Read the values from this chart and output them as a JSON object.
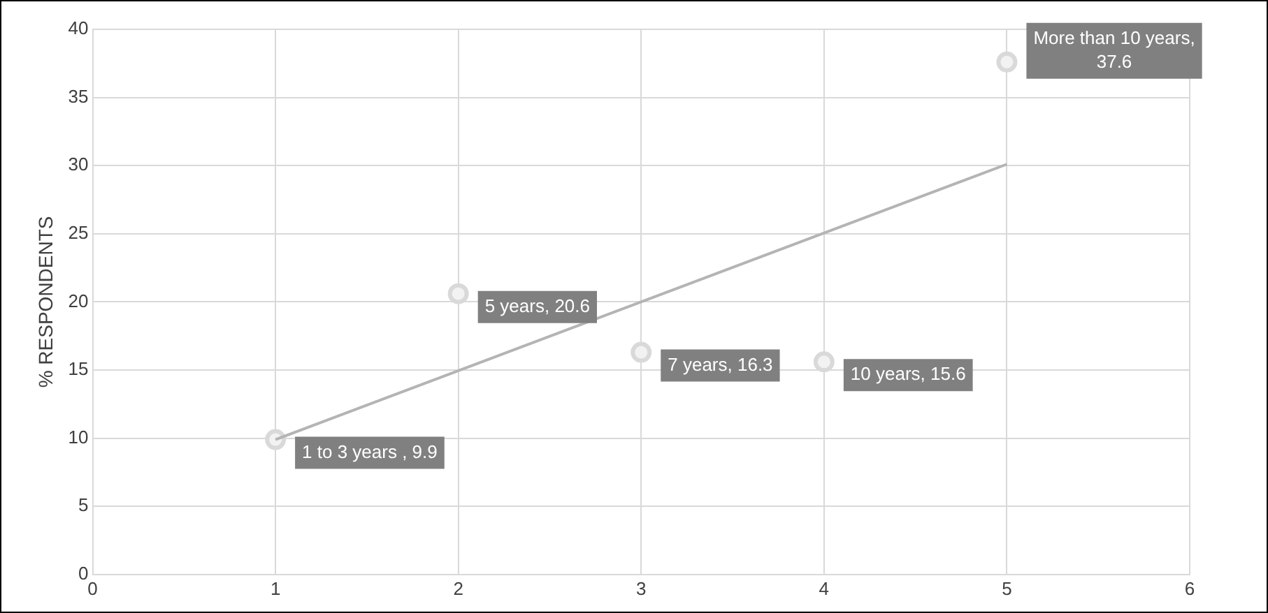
{
  "chart_data": {
    "type": "scatter",
    "ylabel": "% RESPONDENTS",
    "xlim": [
      0,
      6
    ],
    "xticks": [
      0,
      1,
      2,
      3,
      4,
      5,
      6
    ],
    "ylim": [
      0,
      40
    ],
    "yticks": [
      0,
      5,
      10,
      15,
      20,
      25,
      30,
      35,
      40
    ],
    "grid": true,
    "legend": false,
    "marker": "circle",
    "series": [
      {
        "type": "scatter",
        "color": "#d9d9d9",
        "x": [
          1,
          2,
          3,
          4,
          5
        ],
        "values": [
          9.9,
          20.6,
          16.3,
          15.6,
          37.6
        ],
        "value_labels": [
          "1 to 3 years , 9.9",
          "5 years, 20.6",
          "7 years, 16.3",
          "10 years, 15.6",
          "More than 10 years, 37.6"
        ]
      },
      {
        "type": "line",
        "color": "#b4b4b4",
        "x": [
          1,
          5
        ],
        "values": [
          9.9,
          30.1
        ],
        "marker": "none"
      }
    ]
  }
}
